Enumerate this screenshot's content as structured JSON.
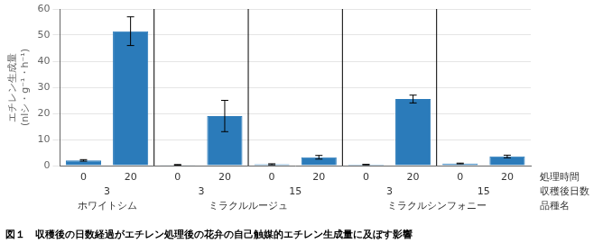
{
  "chart_data": {
    "type": "bar",
    "caption": "図１　収穫後の日数経過がエチレン処理後の花弁の自己触媒的エチレン生成量に及ぼす影響",
    "ylabel": [
      "エチレン生成量",
      "(nlシ・g⁻¹・h⁻¹)"
    ],
    "category_name": "処理時間",
    "categories": [
      "0",
      "20",
      "0",
      "20",
      "0",
      "20",
      "0",
      "20",
      "0",
      "20"
    ],
    "values": [
      2.0,
      51.5,
      0.3,
      19.0,
      0.5,
      3.2,
      0.4,
      25.5,
      0.8,
      3.5
    ],
    "errors": [
      0.3,
      5.5,
      0.1,
      6.0,
      0.2,
      0.7,
      0.1,
      1.5,
      0.15,
      0.5
    ],
    "x_groups": [
      {
        "name": "収穫後日数",
        "groups": [
          {
            "label": "3",
            "size": 2
          },
          {
            "label": "3",
            "size": 2
          },
          {
            "label": "15",
            "size": 2
          },
          {
            "label": "3",
            "size": 2
          },
          {
            "label": "15",
            "size": 2
          }
        ]
      },
      {
        "name": "品種名",
        "groups": [
          {
            "label": "ホワイトシム",
            "size": 2
          },
          {
            "label": "ミラクルルージュ",
            "size": 4
          },
          {
            "label": "ミラクルシンフォニー",
            "size": 4
          }
        ]
      }
    ],
    "color": "#2b7bba",
    "ylim": [
      0,
      60
    ],
    "yticks": [
      0,
      10,
      20,
      30,
      40,
      50,
      60
    ],
    "grid": true
  }
}
